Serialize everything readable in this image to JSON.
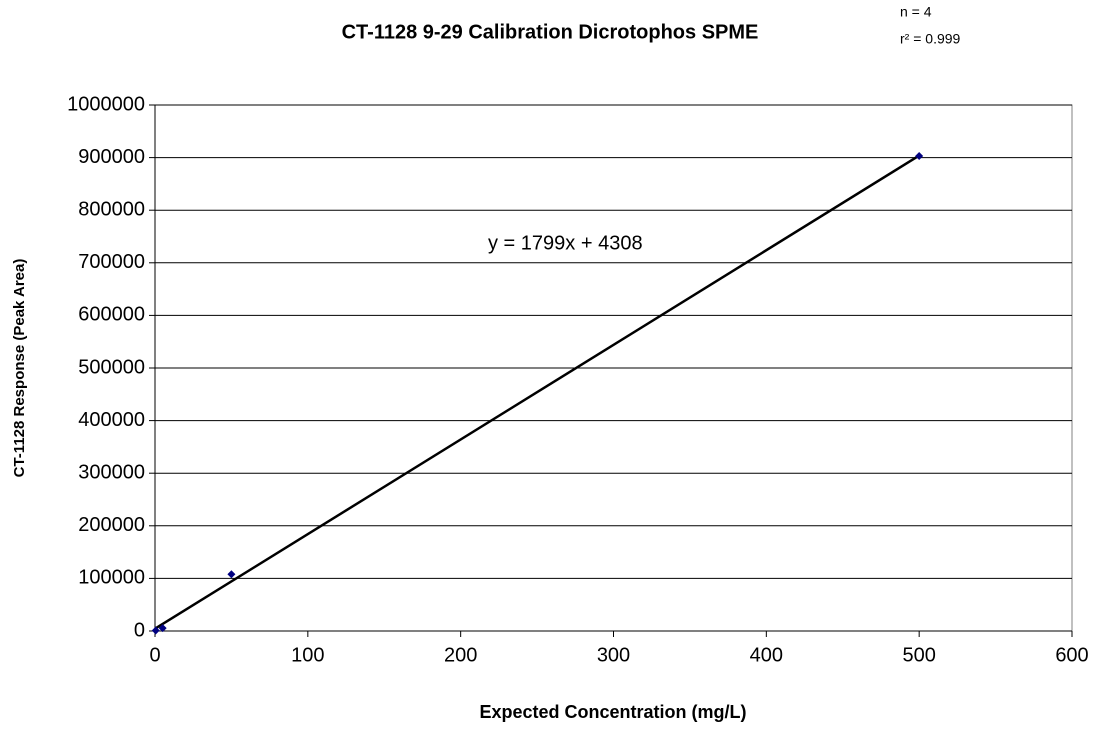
{
  "chart_data": {
    "type": "scatter",
    "title": "CT-1128 9-29 Calibration Dicrotophos SPME",
    "annotations": [
      "n = 4",
      "r² = 0.999"
    ],
    "x_label": "Expected Concentration (mg/L)",
    "y_label": "CT-1128 Response (Peak Area)",
    "series": [
      {
        "name": "Dicrotophos",
        "color": "#000080",
        "x": [
          0.5,
          5,
          50,
          500
        ],
        "values": [
          1000,
          5500,
          108000,
          903000
        ]
      }
    ],
    "trendline": {
      "slope": 1799,
      "intercept": 4308,
      "label": "y = 1799x + 4308",
      "color": "#000000"
    },
    "xlim": [
      0,
      600
    ],
    "xticks": [
      0,
      100,
      200,
      300,
      400,
      500,
      600
    ],
    "ylim": [
      0,
      1000000
    ],
    "yticks": [
      0,
      100000,
      200000,
      300000,
      400000,
      500000,
      600000,
      700000,
      800000,
      900000,
      1000000
    ],
    "grid": true
  }
}
